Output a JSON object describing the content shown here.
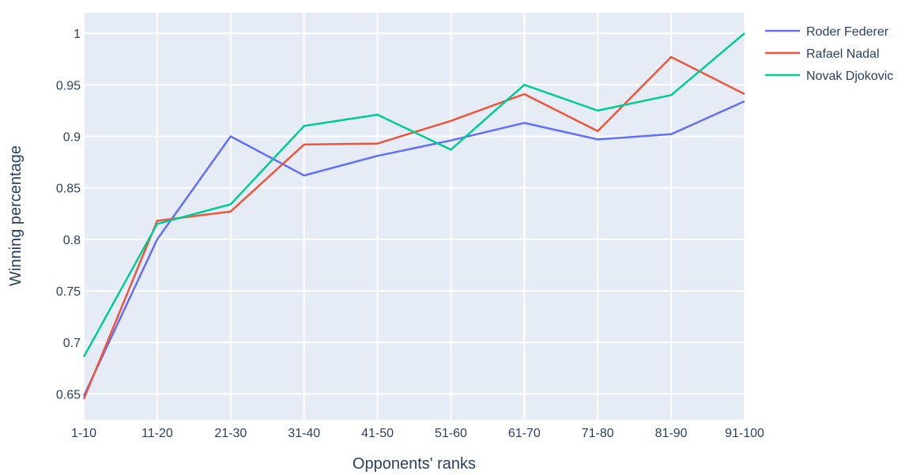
{
  "chart_data": {
    "type": "line",
    "title": "",
    "xlabel": "Opponents' ranks",
    "ylabel": "Winning percentage",
    "categories": [
      "1-10",
      "11-20",
      "21-30",
      "31-40",
      "41-50",
      "51-60",
      "61-70",
      "71-80",
      "81-90",
      "91-100"
    ],
    "ylim": [
      0.625,
      1.02
    ],
    "yticks": [
      0.65,
      0.7,
      0.75,
      0.8,
      0.85,
      0.9,
      0.95,
      1
    ],
    "ytick_labels": [
      "0.65",
      "0.7",
      "0.75",
      "0.8",
      "0.85",
      "0.9",
      "0.95",
      "1"
    ],
    "grid": true,
    "legend_position": "top-right-outside",
    "plot_background": "#e5ecf6",
    "series": [
      {
        "name": "Roder Federer",
        "color": "#636efa",
        "values": [
          0.648,
          0.8,
          0.9,
          0.862,
          0.881,
          0.896,
          0.913,
          0.897,
          0.902,
          0.934
        ]
      },
      {
        "name": "Rafael Nadal",
        "color": "#ef553b",
        "values": [
          0.645,
          0.818,
          0.827,
          0.892,
          0.893,
          0.915,
          0.941,
          0.905,
          0.977,
          0.941
        ]
      },
      {
        "name": "Novak Djokovic",
        "color": "#00cc96",
        "values": [
          0.686,
          0.815,
          0.834,
          0.91,
          0.921,
          0.887,
          0.95,
          0.925,
          0.94,
          1.0
        ]
      }
    ]
  }
}
